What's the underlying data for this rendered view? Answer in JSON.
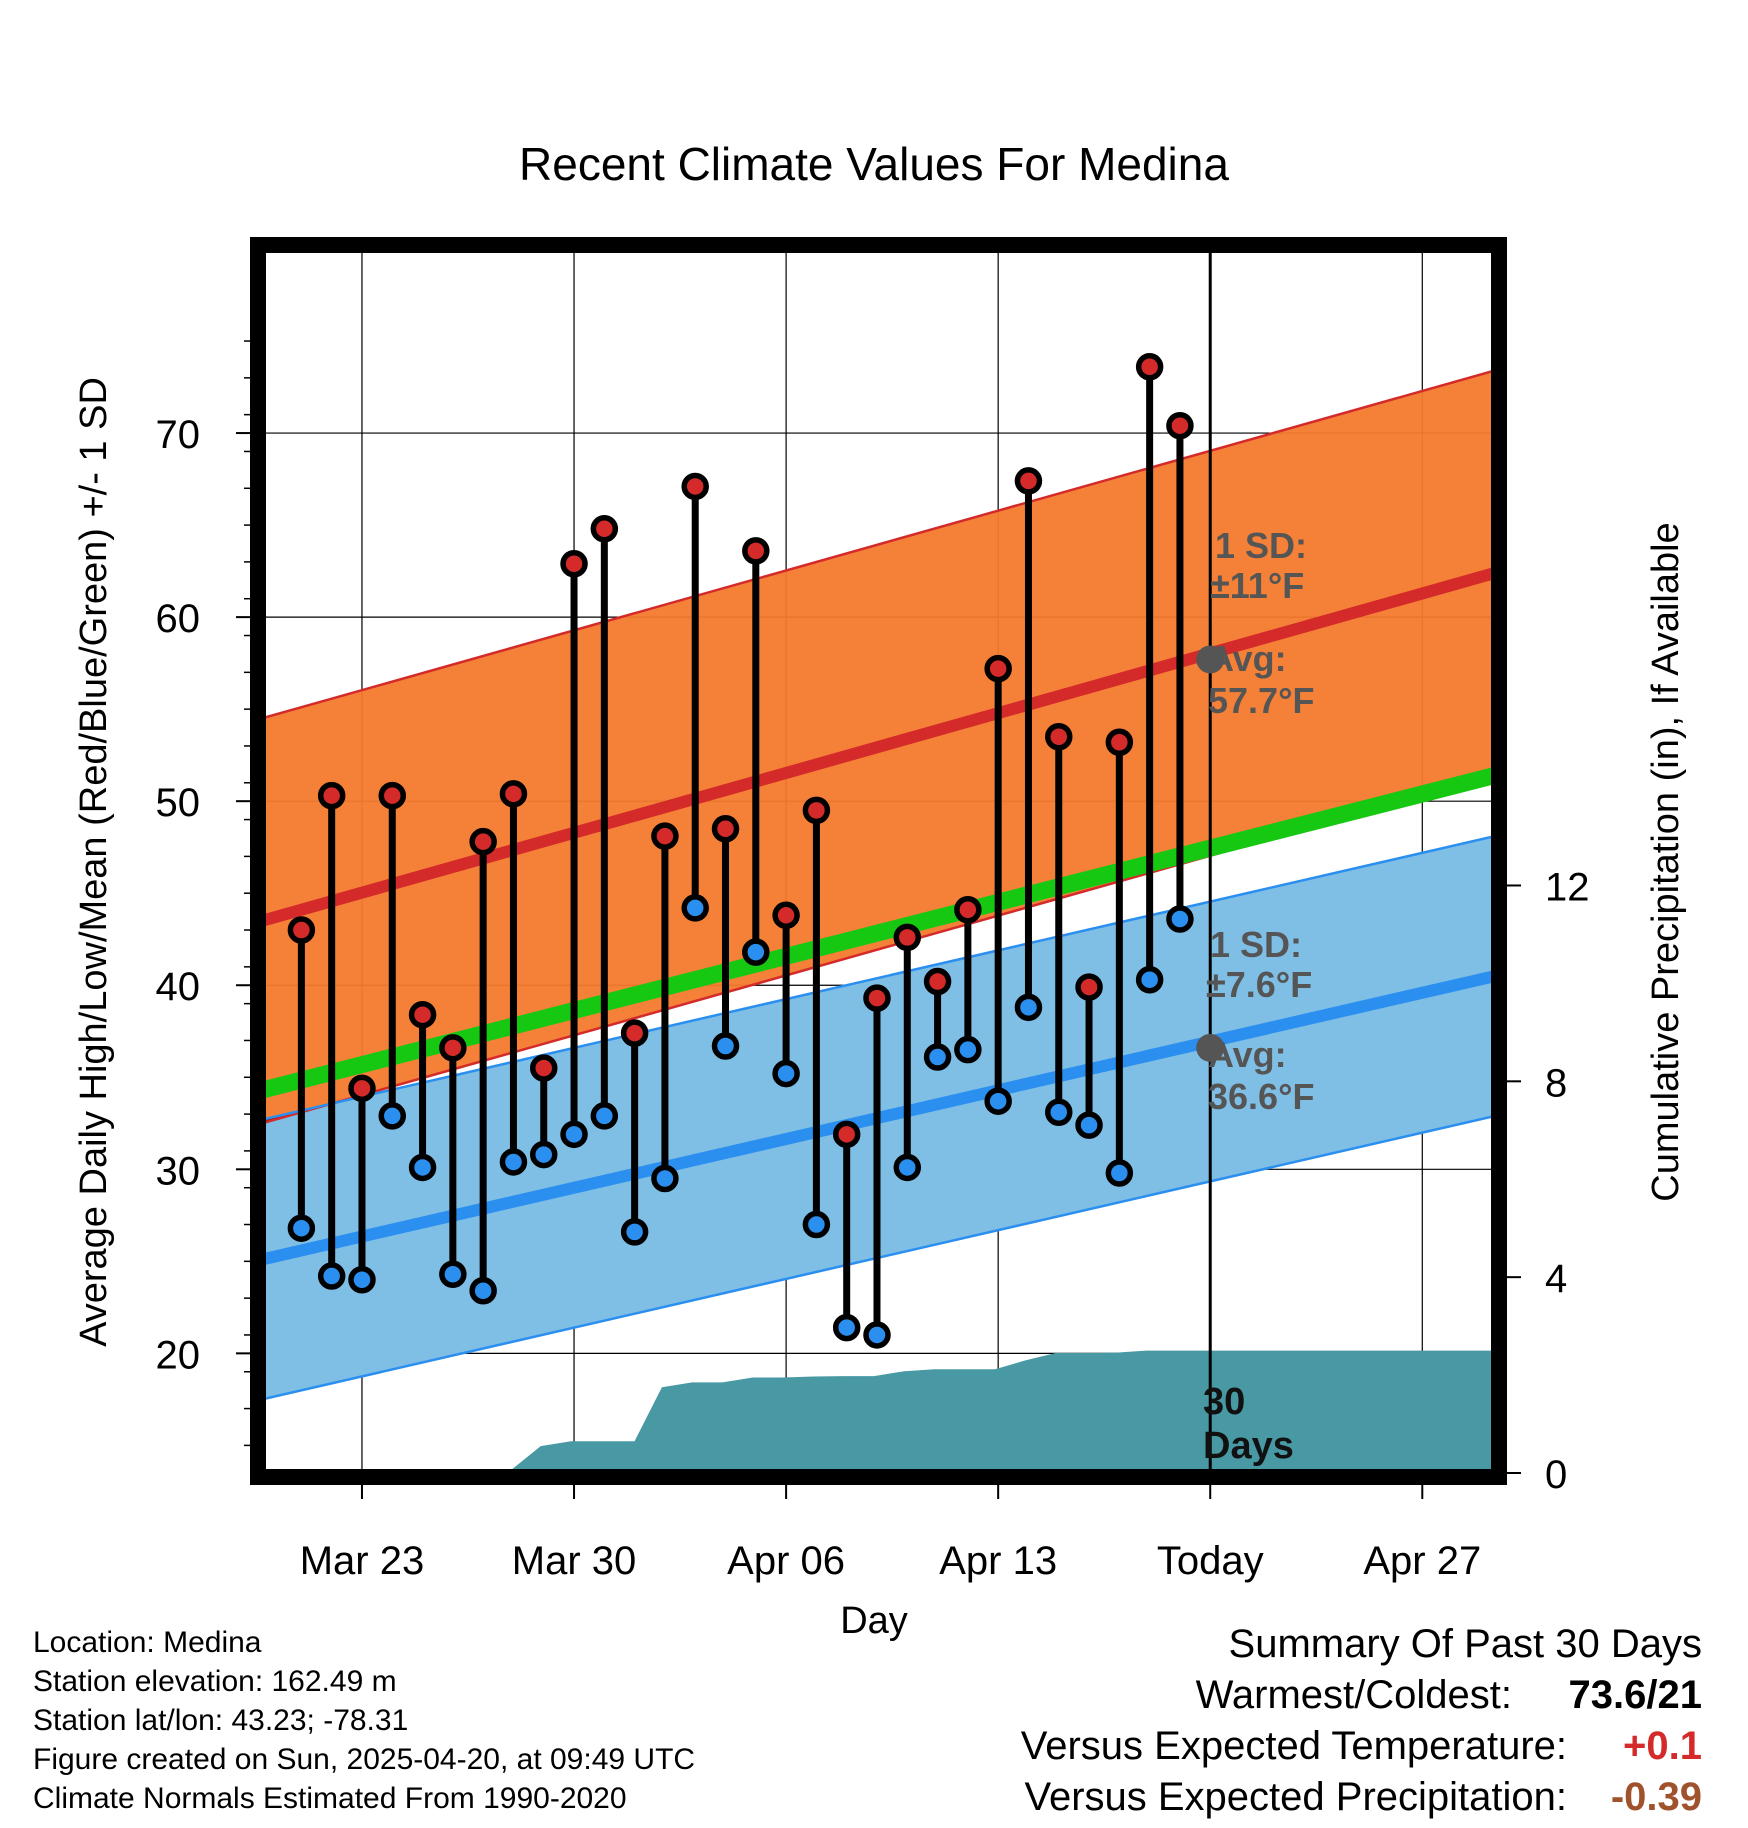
{
  "chart_data": {
    "type": "line",
    "title": "Recent Climate Values For Medina",
    "xlabel": "Day",
    "ylabel_left": "Average Daily High/Low/Mean (Red/Blue/Green) +/- 1 SD",
    "ylabel_right": "Cumulative Precipitation (in), If Available",
    "x_tick_labels": [
      {
        "day": 2,
        "label": "Mar 23"
      },
      {
        "day": 9,
        "label": "Mar 30"
      },
      {
        "day": 16,
        "label": "Apr 06"
      },
      {
        "day": 23,
        "label": "Apr 13"
      },
      {
        "day": 30,
        "label": "Today"
      },
      {
        "day": 37,
        "label": "Apr 27"
      }
    ],
    "xlim": [
      -1.3,
      39.4
    ],
    "ylim": [
      13.5,
      80
    ],
    "y_ticks": [
      20,
      30,
      40,
      50,
      60,
      70
    ],
    "precip_ylim": [
      0,
      25
    ],
    "precip_ticks": [
      0,
      4,
      8,
      12
    ],
    "today_day": 30,
    "days": [
      0,
      1,
      2,
      3,
      4,
      5,
      6,
      7,
      8,
      9,
      10,
      11,
      12,
      13,
      14,
      15,
      16,
      17,
      18,
      19,
      20,
      21,
      22,
      23,
      24,
      25,
      26,
      27,
      28,
      29
    ],
    "observed_highs": [
      43.0,
      50.3,
      34.4,
      50.3,
      38.4,
      36.6,
      47.8,
      50.4,
      35.5,
      62.9,
      64.8,
      37.4,
      48.1,
      67.1,
      48.5,
      63.6,
      43.8,
      49.5,
      31.9,
      39.3,
      42.6,
      40.2,
      44.1,
      57.2,
      67.4,
      53.5,
      39.9,
      53.2,
      73.6,
      70.4
    ],
    "observed_lows": [
      26.8,
      24.2,
      24.0,
      32.9,
      30.1,
      24.3,
      23.4,
      30.4,
      30.8,
      31.9,
      32.9,
      26.6,
      29.5,
      44.2,
      36.7,
      41.8,
      35.2,
      27.0,
      21.4,
      21.0,
      30.1,
      36.1,
      36.5,
      33.7,
      38.8,
      33.1,
      32.4,
      29.8,
      40.3,
      43.6
    ],
    "normal_high": {
      "start": 43.5,
      "end": 62.4,
      "sd": 11,
      "today_avg": 57.7
    },
    "normal_low": {
      "start": 25.1,
      "end": 40.5,
      "sd": 7.6,
      "today_avg": 36.6
    },
    "normal_mean": {
      "start": 34.3,
      "end": 51.4
    },
    "precip_days": [
      -1.3,
      6.8,
      7.9,
      8.9,
      9.9,
      11.0,
      11.9,
      12.9,
      13.9,
      14.9,
      15.9,
      16.9,
      17.9,
      18.9,
      19.9,
      20.9,
      21.9,
      22.9,
      23.9,
      24.9,
      25.9,
      26.9,
      27.9,
      28.9,
      29.9,
      39.4
    ],
    "cumulative_precip": [
      0,
      0,
      0.55,
      0.65,
      0.65,
      0.65,
      1.75,
      1.85,
      1.85,
      1.95,
      1.95,
      1.97,
      1.98,
      1.98,
      2.08,
      2.12,
      2.12,
      2.12,
      2.3,
      2.45,
      2.45,
      2.46,
      2.5,
      2.5,
      2.5,
      2.5
    ],
    "annotations": {
      "high_sd_line1": "1 SD:",
      "high_sd_line2": "±11°F",
      "high_avg_line1": "Avg:",
      "high_avg_line2": "57.7°F",
      "low_sd_line1": "1 SD:",
      "low_sd_line2": "±7.6°F",
      "low_avg_line1": "Avg:",
      "low_avg_line2": "36.6°F",
      "window_line1": "30",
      "window_line2": "Days"
    },
    "colors": {
      "high_band": "#f47a2d",
      "high_line": "#d42a2a",
      "low_band": "#80bfe5",
      "low_line": "#2b8ff0",
      "mean_band": "#17c812",
      "overlap": "#8c1010",
      "precip": "#4899a3",
      "high_marker": "#d42a2a",
      "low_marker": "#2b8ff0",
      "annotation": "#555555"
    }
  },
  "metadata": {
    "location": "Location: Medina",
    "elevation": "Station elevation: 162.49 m",
    "latlon": "Station lat/lon: 43.23; -78.31",
    "created": "Figure created on Sun, 2025-04-20, at 09:49 UTC",
    "normals": "Climate Normals Estimated From 1990-2020"
  },
  "summary": {
    "title": "Summary Of Past 30 Days",
    "warmest_label": "Warmest/Coldest:",
    "warmest_value": "73.6/21",
    "temp_label": "Versus Expected Temperature:",
    "temp_value": "+0.1",
    "temp_color": "#d42a2a",
    "precip_label": "Versus Expected Precipitation:",
    "precip_value": "-0.39",
    "precip_color": "#a0522d"
  }
}
